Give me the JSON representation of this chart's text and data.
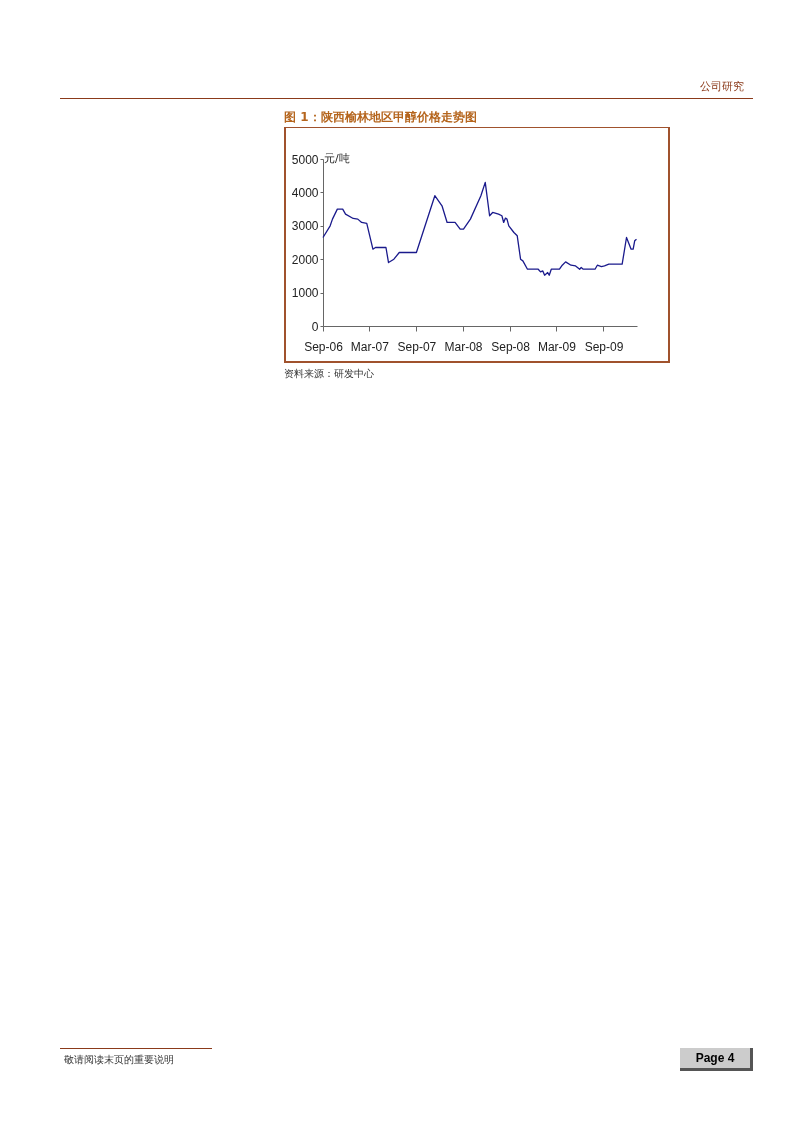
{
  "chart_data": {
    "type": "line",
    "title": "图 1：陕西榆林地区甲醇价格走势图",
    "ylabel": "元/吨",
    "annotations": [
      "资料来源：研发中心",
      "公司研究",
      "敬请阅读末页的重要说明",
      "Page 4"
    ],
    "x": [
      "2006-09-01",
      "2006-09-29",
      "2006-10-08",
      "2006-10-27",
      "2006-11-17",
      "2006-11-28",
      "2006-12-28",
      "2007-01-15",
      "2007-01-30",
      "2007-02-19",
      "2007-03-15",
      "2007-03-25",
      "2007-05-05",
      "2007-05-15",
      "2007-06-05",
      "2007-06-26",
      "2007-09-01",
      "2007-11-12",
      "2007-12-10",
      "2007-12-30",
      "2008-01-30",
      "2008-02-19",
      "2008-03-03",
      "2008-03-30",
      "2008-05-10",
      "2008-05-27",
      "2008-06-13",
      "2008-06-25",
      "2008-07-18",
      "2008-07-31",
      "2008-08-07",
      "2008-08-14",
      "2008-08-20",
      "2008-08-27",
      "2008-09-16",
      "2008-09-29",
      "2008-10-12",
      "2008-10-21",
      "2008-11-08",
      "2008-12-20",
      "2008-12-29",
      "2009-01-07",
      "2009-01-14",
      "2009-01-26",
      "2009-02-01",
      "2009-02-09",
      "2009-03-13",
      "2009-03-24",
      "2009-04-06",
      "2009-04-27",
      "2009-05-15",
      "2009-05-31",
      "2009-06-06",
      "2009-06-14",
      "2009-07-30",
      "2009-08-08",
      "2009-08-24",
      "2009-09-05",
      "2009-09-22",
      "2009-11-13",
      "2009-11-30",
      "2009-12-18",
      "2009-12-26",
      "2010-01-01",
      "2010-01-08"
    ],
    "series": [
      {
        "color": "#1a1a8c",
        "values": [
          2650,
          3000,
          3200,
          3500,
          3500,
          3350,
          3220,
          3200,
          3100,
          3070,
          2300,
          2350,
          2350,
          1900,
          2000,
          2200,
          2200,
          3900,
          3600,
          3100,
          3100,
          2900,
          2900,
          3200,
          3900,
          4300,
          3300,
          3400,
          3350,
          3300,
          3100,
          3230,
          3200,
          3000,
          2800,
          2700,
          2000,
          1950,
          1700,
          1700,
          1620,
          1650,
          1520,
          1600,
          1520,
          1700,
          1700,
          1820,
          1920,
          1820,
          1800,
          1700,
          1750,
          1700,
          1700,
          1820,
          1780,
          1800,
          1850,
          1850,
          2650,
          2300,
          2300,
          2550,
          2600
        ]
      }
    ],
    "xlim": [
      "2006-09-01",
      "2010-01-10"
    ],
    "xticks": [
      {
        "value": "2006-09-01",
        "label": "Sep-06"
      },
      {
        "value": "2007-03-01",
        "label": "Mar-07"
      },
      {
        "value": "2007-09-01",
        "label": "Sep-07"
      },
      {
        "value": "2008-03-01",
        "label": "Mar-08"
      },
      {
        "value": "2008-09-01",
        "label": "Sep-08"
      },
      {
        "value": "2009-03-01",
        "label": "Mar-09"
      },
      {
        "value": "2009-09-01",
        "label": "Sep-09"
      }
    ],
    "ylim": [
      0,
      5000
    ],
    "yticks": [
      0,
      1000,
      2000,
      3000,
      4000,
      5000
    ],
    "grid": false,
    "legend": false,
    "marker": "none",
    "line_style": "solid"
  }
}
